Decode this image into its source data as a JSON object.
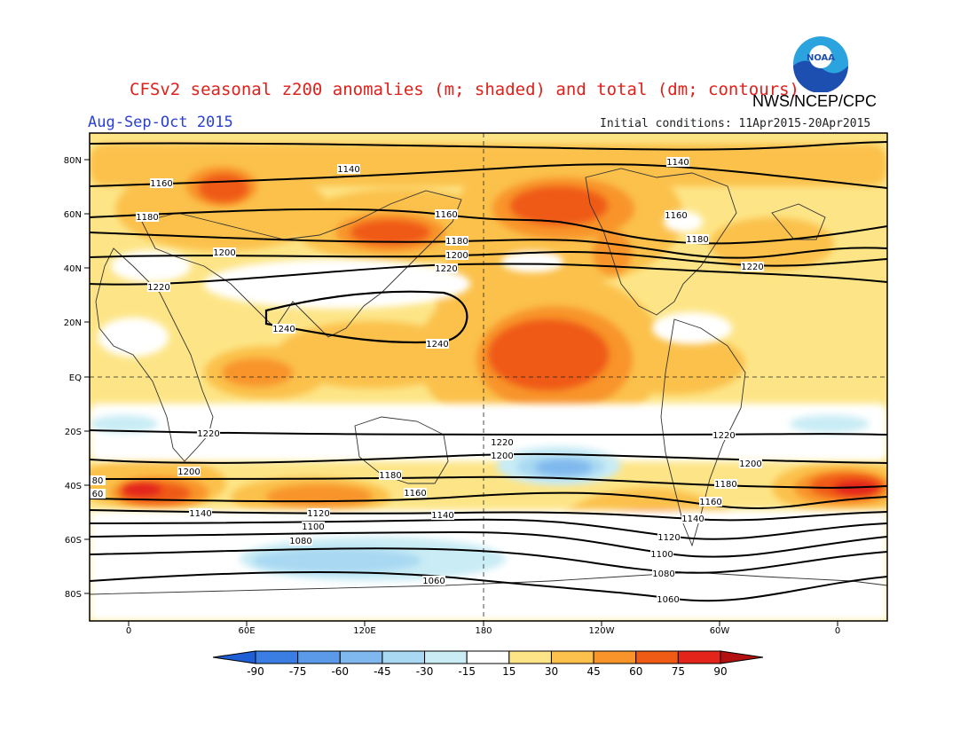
{
  "header": {
    "title": "CFSv2 seasonal z200 anomalies (m; shaded) and total (dm; contours)",
    "agency": "NWS/NCEP/CPC",
    "period": "Aug-Sep-Oct 2015",
    "initial_conditions": "Initial conditions: 11Apr2015-20Apr2015",
    "logo_text": "NOAA"
  },
  "map": {
    "lat_labels": [
      "80N",
      "60N",
      "40N",
      "20N",
      "EQ",
      "20S",
      "40S",
      "60S",
      "80S"
    ],
    "lon_labels": [
      "0",
      "60E",
      "120E",
      "180",
      "120W",
      "60W",
      "0"
    ],
    "contour_labels": [
      "1140",
      "1140",
      "1160",
      "1160",
      "1160",
      "1180",
      "1180",
      "1180",
      "1200",
      "1200",
      "1220",
      "1220",
      "1220",
      "1240",
      "1240",
      "1220",
      "1220",
      "1220",
      "1200",
      "1200",
      "1200",
      "1180",
      "1180",
      "1160",
      "1160",
      "1140",
      "1140",
      "1140",
      "1120",
      "1120",
      "1100",
      "1100",
      "1080",
      "1080",
      "1060",
      "1060",
      "80",
      "60"
    ]
  },
  "colorbar": {
    "ticks": [
      "-90",
      "-75",
      "-60",
      "-45",
      "-30",
      "-15",
      "15",
      "30",
      "45",
      "60",
      "75",
      "90"
    ],
    "colors": [
      "#1f5fd6",
      "#3a7ee3",
      "#5a9ae8",
      "#7fb8ee",
      "#a8d8f2",
      "#c9ecf5",
      "#ffffff",
      "#fde587",
      "#fbc14c",
      "#f8942a",
      "#ef5a14",
      "#e2241a",
      "#b3110f"
    ]
  }
}
